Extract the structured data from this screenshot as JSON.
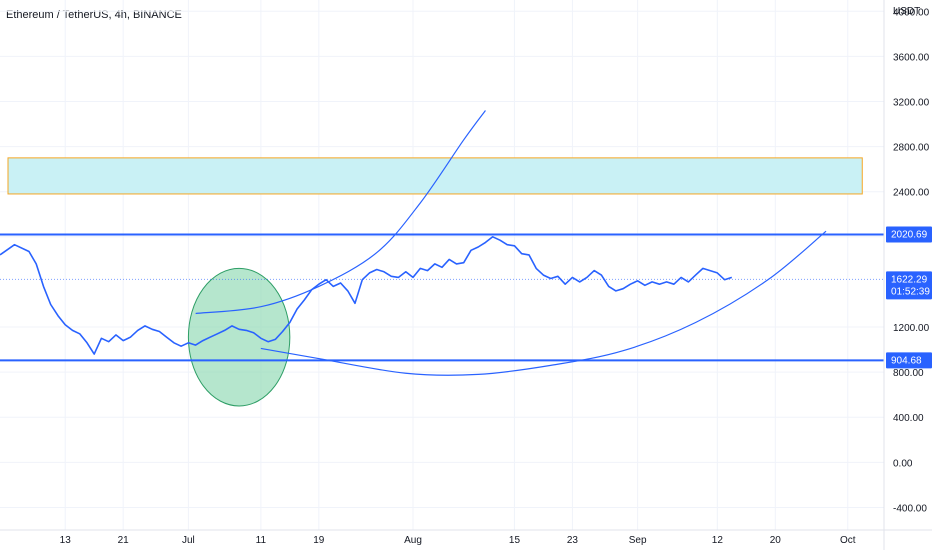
{
  "chart_data": {
    "type": "line",
    "title": "Ethereum / TetherUS, 4h, BINANCE",
    "currency": "USDT",
    "ylim": [
      -600,
      4100
    ],
    "y_ticks": [
      {
        "value": 4000,
        "label": "4000.00"
      },
      {
        "value": 3600,
        "label": "3600.00"
      },
      {
        "value": 3200,
        "label": "3200.00"
      },
      {
        "value": 2800,
        "label": "2800.00"
      },
      {
        "value": 2400,
        "label": "2400.00"
      },
      {
        "value": 2000,
        "label": "2000.00"
      },
      {
        "value": 1200,
        "label": "1200.00"
      },
      {
        "value": 800,
        "label": "800.00"
      },
      {
        "value": 400,
        "label": "400.00"
      },
      {
        "value": 0,
        "label": "0.00"
      },
      {
        "value": -400,
        "label": "-400.00"
      }
    ],
    "x_ticks": [
      {
        "day": 13,
        "label": "13"
      },
      {
        "day": 21,
        "label": "21"
      },
      {
        "day": 30,
        "label": "Jul"
      },
      {
        "day": 40,
        "label": "11"
      },
      {
        "day": 48,
        "label": "19"
      },
      {
        "day": 61,
        "label": "Aug"
      },
      {
        "day": 75,
        "label": "15"
      },
      {
        "day": 83,
        "label": "23"
      },
      {
        "day": 92,
        "label": "Sep"
      },
      {
        "day": 103,
        "label": "12"
      },
      {
        "day": 111,
        "label": "20"
      },
      {
        "day": 121,
        "label": "Oct"
      }
    ],
    "xlim": [
      4,
      126
    ],
    "series": [
      {
        "color": "#2962ff",
        "points": [
          [
            4,
            1840
          ],
          [
            6,
            1930
          ],
          [
            8,
            1870
          ],
          [
            9,
            1760
          ],
          [
            10,
            1560
          ],
          [
            11,
            1400
          ],
          [
            12,
            1300
          ],
          [
            13,
            1220
          ],
          [
            14,
            1170
          ],
          [
            15,
            1140
          ],
          [
            16,
            1060
          ],
          [
            17,
            960
          ],
          [
            18,
            1100
          ],
          [
            19,
            1070
          ],
          [
            20,
            1130
          ],
          [
            21,
            1080
          ],
          [
            22,
            1110
          ],
          [
            23,
            1170
          ],
          [
            24,
            1210
          ],
          [
            25,
            1180
          ],
          [
            26,
            1160
          ],
          [
            27,
            1110
          ],
          [
            28,
            1060
          ],
          [
            29,
            1030
          ],
          [
            30,
            1060
          ],
          [
            31,
            1040
          ],
          [
            32,
            1080
          ],
          [
            33,
            1110
          ],
          [
            34,
            1140
          ],
          [
            35,
            1170
          ],
          [
            36,
            1210
          ],
          [
            37,
            1180
          ],
          [
            38,
            1170
          ],
          [
            39,
            1150
          ],
          [
            40,
            1100
          ],
          [
            41,
            1070
          ],
          [
            42,
            1090
          ],
          [
            43,
            1160
          ],
          [
            44,
            1240
          ],
          [
            45,
            1360
          ],
          [
            46,
            1440
          ],
          [
            47,
            1530
          ],
          [
            48,
            1580
          ],
          [
            49,
            1620
          ],
          [
            50,
            1560
          ],
          [
            51,
            1590
          ],
          [
            52,
            1520
          ],
          [
            53,
            1410
          ],
          [
            54,
            1620
          ],
          [
            55,
            1680
          ],
          [
            56,
            1710
          ],
          [
            57,
            1690
          ],
          [
            58,
            1650
          ],
          [
            59,
            1640
          ],
          [
            60,
            1690
          ],
          [
            61,
            1640
          ],
          [
            62,
            1720
          ],
          [
            63,
            1700
          ],
          [
            64,
            1760
          ],
          [
            65,
            1730
          ],
          [
            66,
            1800
          ],
          [
            67,
            1760
          ],
          [
            68,
            1770
          ],
          [
            69,
            1880
          ],
          [
            70,
            1910
          ],
          [
            71,
            1950
          ],
          [
            72,
            2000
          ],
          [
            73,
            1970
          ],
          [
            74,
            1930
          ],
          [
            75,
            1920
          ],
          [
            76,
            1850
          ],
          [
            77,
            1840
          ],
          [
            78,
            1720
          ],
          [
            79,
            1660
          ],
          [
            80,
            1630
          ],
          [
            81,
            1650
          ],
          [
            82,
            1580
          ],
          [
            83,
            1640
          ],
          [
            84,
            1600
          ],
          [
            85,
            1640
          ],
          [
            86,
            1700
          ],
          [
            87,
            1660
          ],
          [
            88,
            1560
          ],
          [
            89,
            1520
          ],
          [
            90,
            1540
          ],
          [
            91,
            1580
          ],
          [
            92,
            1610
          ],
          [
            93,
            1570
          ],
          [
            94,
            1600
          ],
          [
            95,
            1580
          ],
          [
            96,
            1600
          ],
          [
            97,
            1580
          ],
          [
            98,
            1640
          ],
          [
            99,
            1600
          ],
          [
            100,
            1660
          ],
          [
            101,
            1720
          ],
          [
            102,
            1700
          ],
          [
            103,
            1680
          ],
          [
            104,
            1620
          ],
          [
            105,
            1640
          ]
        ]
      }
    ],
    "horizontal_lines": [
      {
        "value": 2020.69,
        "label": "2020.69",
        "color": "#2962ff"
      },
      {
        "value": 904.68,
        "label": "904.68",
        "color": "#2962ff"
      }
    ],
    "last_price": {
      "value": 1622.29,
      "label": "1622.29",
      "countdown": "01:52:39",
      "color": "#2962ff"
    },
    "zone": {
      "x_from": 4,
      "x_to": 123,
      "y_from": 2380,
      "y_to": 2700,
      "fill": "#c9f1f5",
      "border": "#f5a623"
    },
    "ellipse": {
      "x_center": 37,
      "y_center": 1110,
      "x_radius": 7,
      "y_radius": 610,
      "fill": "#8ed8b2",
      "border": "#2e9e66"
    },
    "arcs": [
      {
        "color": "#2962ff",
        "points": [
          [
            31,
            1320
          ],
          [
            40,
            1380
          ],
          [
            48,
            1560
          ],
          [
            56,
            1860
          ],
          [
            62,
            2300
          ],
          [
            68,
            2860
          ],
          [
            71,
            3120
          ]
        ]
      },
      {
        "color": "#2962ff",
        "points": [
          [
            40,
            1010
          ],
          [
            48,
            920
          ],
          [
            60,
            790
          ],
          [
            70,
            780
          ],
          [
            80,
            860
          ],
          [
            90,
            990
          ],
          [
            100,
            1240
          ],
          [
            110,
            1620
          ],
          [
            118,
            2050
          ]
        ]
      }
    ],
    "grid": true,
    "legend": "none"
  }
}
